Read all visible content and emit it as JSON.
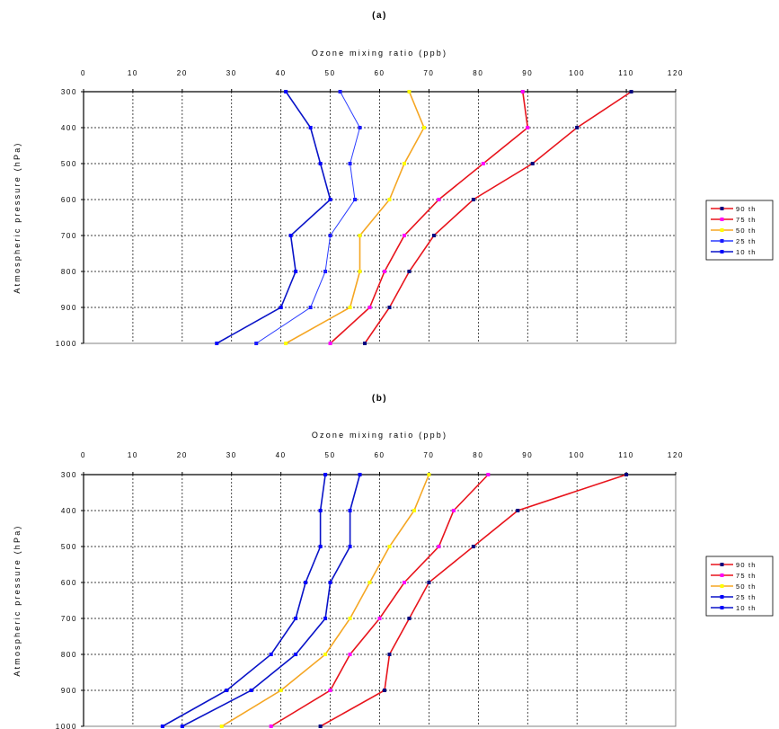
{
  "chart_data": [
    {
      "type": "line",
      "title": "(a)",
      "xlabel": "Ozone mixing ratio (ppb)",
      "ylabel": "Atmospheric pressure (hPa)",
      "xlim": [
        0,
        120
      ],
      "ylim": [
        300,
        1000
      ],
      "x_ticks": [
        0,
        10,
        20,
        30,
        40,
        50,
        60,
        70,
        80,
        90,
        100,
        110,
        120
      ],
      "y_ticks": [
        300,
        400,
        500,
        600,
        700,
        800,
        900,
        1000
      ],
      "y_inverted": true,
      "grid": true,
      "legend_position": "right",
      "pressure": [
        300,
        400,
        500,
        600,
        700,
        800,
        900,
        1000
      ],
      "series": [
        {
          "name": "90 th",
          "color": "#e8141c",
          "marker_color": "#000080",
          "x": [
            111,
            100,
            91,
            79,
            71,
            66,
            62,
            57
          ]
        },
        {
          "name": "75 th",
          "color": "#e8141c",
          "marker_color": "#ff00ff",
          "x": [
            89,
            90,
            81,
            72,
            65,
            61,
            58,
            50
          ]
        },
        {
          "name": "50 th",
          "color": "#f5a623",
          "marker_color": "#ffff00",
          "x": [
            66,
            69,
            65,
            62,
            56,
            56,
            54,
            41
          ]
        },
        {
          "name": "25 th",
          "color": "#2a3cff",
          "marker_color": "#1a1aff",
          "x": [
            52,
            56,
            54,
            55,
            50,
            49,
            46,
            35
          ]
        },
        {
          "name": "10 th",
          "color": "#0a14c8",
          "marker_color": "#0000ff",
          "x": [
            41,
            46,
            48,
            50,
            42,
            43,
            40,
            27
          ]
        }
      ]
    },
    {
      "type": "line",
      "title": "(b)",
      "xlabel": "Ozone mixing ratio (ppb)",
      "ylabel": "Atmospheric pressure (hPa)",
      "xlim": [
        0,
        120
      ],
      "ylim": [
        300,
        1000
      ],
      "x_ticks": [
        0,
        10,
        20,
        30,
        40,
        50,
        60,
        70,
        80,
        90,
        100,
        110,
        120
      ],
      "y_ticks": [
        300,
        400,
        500,
        600,
        700,
        800,
        900,
        1000
      ],
      "y_inverted": true,
      "grid": true,
      "legend_position": "right",
      "pressure": [
        300,
        400,
        500,
        600,
        700,
        800,
        900,
        1000
      ],
      "series": [
        {
          "name": "90 th",
          "color": "#e8141c",
          "marker_color": "#000080",
          "x": [
            110,
            88,
            79,
            70,
            66,
            62,
            61,
            48
          ]
        },
        {
          "name": "75 th",
          "color": "#e8141c",
          "marker_color": "#ff00ff",
          "x": [
            82,
            75,
            72,
            65,
            60,
            54,
            50,
            38
          ]
        },
        {
          "name": "50 th",
          "color": "#f5a623",
          "marker_color": "#ffff00",
          "x": [
            70,
            67,
            62,
            58,
            54,
            49,
            40,
            28
          ]
        },
        {
          "name": "25 th",
          "color": "#0a14c8",
          "marker_color": "#0000ff",
          "x": [
            56,
            54,
            54,
            50,
            49,
            43,
            34,
            20
          ]
        },
        {
          "name": "10 th",
          "color": "#0a14c8",
          "marker_color": "#0000ff",
          "x": [
            49,
            48,
            48,
            45,
            43,
            38,
            29,
            16
          ]
        }
      ]
    }
  ]
}
